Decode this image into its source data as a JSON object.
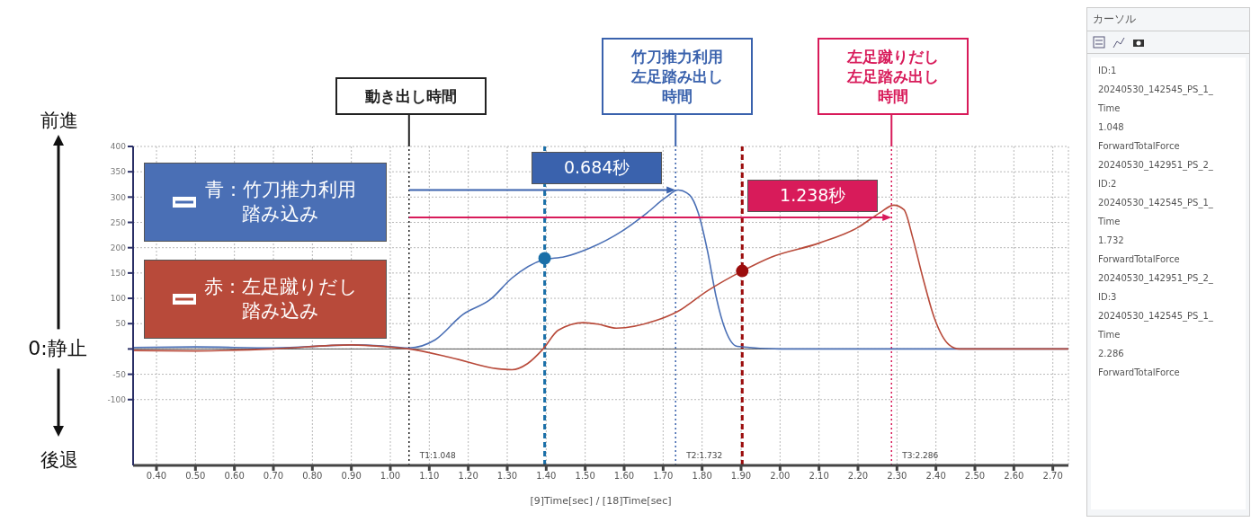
{
  "chart_data": [
    {
      "type": "line",
      "xlabel": "[9]Time[sec] / [18]Time[sec]",
      "x": [
        0.34,
        0.5,
        0.7,
        0.9,
        0.98,
        1.048,
        1.115,
        1.186,
        1.257,
        1.312,
        1.392,
        1.447,
        1.511,
        1.595,
        1.659,
        1.706,
        1.739,
        1.768,
        1.79,
        1.814,
        1.836,
        1.86,
        1.89,
        2.0,
        2.2,
        2.4,
        2.6,
        2.74
      ],
      "series": [
        {
          "name": "青：竹刀推力利用踏み込み",
          "color": "#4a6fb5",
          "values": [
            3,
            4,
            2,
            8,
            6,
            2,
            18,
            68,
            98,
            140,
            176,
            182,
            199,
            233,
            269,
            299,
            314,
            304,
            269,
            193,
            103,
            37,
            5,
            0,
            0,
            0,
            0,
            0
          ]
        },
        {
          "name": "赤：左足蹴りだし踏み込み",
          "color": "#b84a3a",
          "x": [
            0.34,
            0.5,
            0.7,
            0.9,
            0.98,
            1.048,
            1.155,
            1.274,
            1.312,
            1.352,
            1.392,
            1.431,
            1.496,
            1.533,
            1.58,
            1.681,
            1.737,
            1.814,
            1.903,
            1.976,
            2.1,
            2.2,
            2.256,
            2.292,
            2.318,
            2.34,
            2.365,
            2.396,
            2.434,
            2.46,
            2.6,
            2.74
          ],
          "values": [
            -3,
            -4,
            0,
            8,
            5,
            0,
            -17,
            -39,
            -41,
            -29,
            0,
            37,
            52,
            49,
            41,
            56,
            74,
            115,
            154,
            181,
            209,
            240,
            269,
            284,
            275,
            221,
            145,
            61,
            8,
            0,
            0,
            0
          ]
        },
        {
          "type": "scatter",
          "color": "#1a6fa8",
          "x": [
            1.396
          ],
          "values": [
            179
          ]
        },
        {
          "type": "scatter",
          "color": "#9b0d0d",
          "x": [
            1.903
          ],
          "values": [
            154
          ]
        }
      ],
      "xlim": [
        0.34,
        2.74
      ],
      "xticks": [
        {
          "value": 0.4,
          "label": "0.40"
        },
        {
          "value": 0.5,
          "label": "0.50"
        },
        {
          "value": 0.6,
          "label": "0.60"
        },
        {
          "value": 0.7,
          "label": "0.70"
        },
        {
          "value": 0.8,
          "label": "0.80"
        },
        {
          "value": 0.9,
          "label": "0.90"
        },
        {
          "value": 1.0,
          "label": "1.00"
        },
        {
          "value": 1.1,
          "label": "1.10"
        },
        {
          "value": 1.2,
          "label": "1.20"
        },
        {
          "value": 1.3,
          "label": "1.30"
        },
        {
          "value": 1.4,
          "label": "1.40"
        },
        {
          "value": 1.5,
          "label": "1.50"
        },
        {
          "value": 1.6,
          "label": "1.60"
        },
        {
          "value": 1.7,
          "label": "1.70"
        },
        {
          "value": 1.8,
          "label": "1.80"
        },
        {
          "value": 1.9,
          "label": "1.90"
        },
        {
          "value": 2.0,
          "label": "2.00"
        },
        {
          "value": 2.1,
          "label": "2.10"
        },
        {
          "value": 2.2,
          "label": "2.20"
        },
        {
          "value": 2.3,
          "label": "2.30"
        },
        {
          "value": 2.4,
          "label": "2.40"
        },
        {
          "value": 2.5,
          "label": "2.50"
        },
        {
          "value": 2.6,
          "label": "2.60"
        },
        {
          "value": 2.7,
          "label": "2.70"
        }
      ],
      "ylim": [
        -230,
        400
      ],
      "yticks": [
        -100,
        -50,
        {
          "value": 0,
          "label": null
        },
        50,
        100,
        150,
        200,
        250,
        300,
        350,
        400
      ],
      "grid": true,
      "legend": "top left",
      "ref_lines": [
        {
          "axis": "x",
          "value": 1.048,
          "label": "T1:1.048",
          "color": "#222222",
          "line_style": "dotted"
        },
        {
          "axis": "x",
          "value": 1.732,
          "label": "T2:1.732",
          "color": "#3a62ad",
          "line_style": "dotted"
        },
        {
          "axis": "x",
          "value": 2.286,
          "label": "T3:2.286",
          "color": "#d81b5a",
          "line_style": "dotted"
        },
        {
          "axis": "x",
          "value": 1.396,
          "color": "#1a6fa8",
          "line_style": "dashed"
        },
        {
          "axis": "x",
          "value": 1.903,
          "color": "#9b0d0d",
          "line_style": "dashed"
        }
      ],
      "annotations": [
        {
          "text": "動き出し時間",
          "x": 1.048
        },
        {
          "text": "竹刀推力利用左足踏み出し時間",
          "x": 1.732
        },
        {
          "text": "左足蹴りだし左足踏み出し時間",
          "x": 2.286
        },
        {
          "text": "0.684秒",
          "x": 1.732,
          "y": 314
        },
        {
          "text": "1.238秒",
          "x": 2.286,
          "y": 260
        },
        "前進",
        "0:静止",
        "後退"
      ]
    },
    {
      "type": "other",
      "title": "カーソル",
      "annotations": [
        "ID:1",
        "20240530_142545_PS_1_",
        "Time",
        "1.048",
        "ForwardTotalForce",
        "20240530_142951_PS_2_",
        "ID:2",
        "20240530_142545_PS_1_",
        "Time",
        "1.732",
        "ForwardTotalForce",
        "20240530_142951_PS_2_",
        "ID:3",
        "20240530_142545_PS_1_",
        "Time",
        "2.286",
        "ForwardTotalForce"
      ]
    }
  ]
}
